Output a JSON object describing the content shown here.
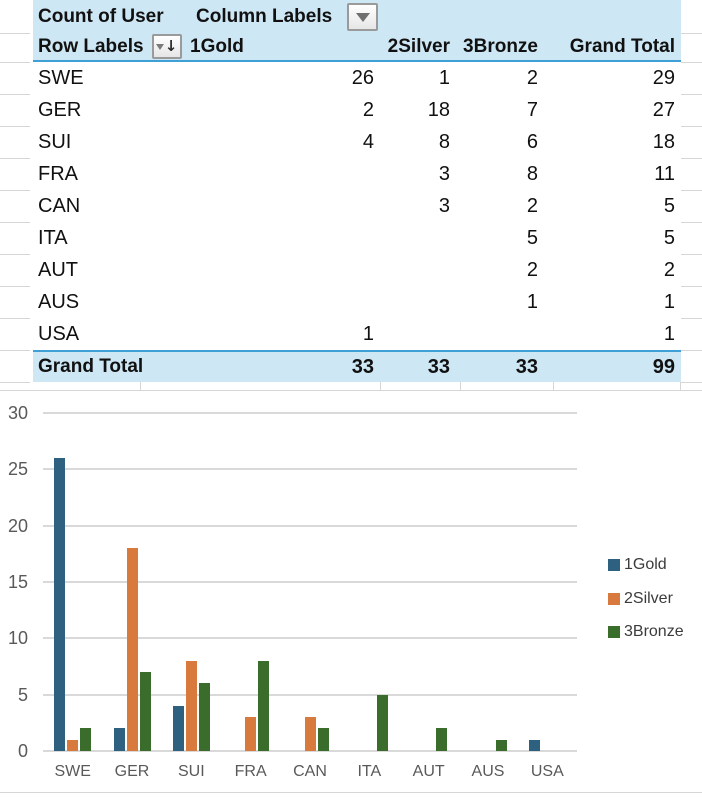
{
  "pivot_table": {
    "title": "Count of User",
    "column_labels_caption": "Column Labels",
    "row_labels_caption": "Row Labels",
    "columns": [
      "1Gold",
      "2Silver",
      "3Bronze",
      "Grand Total"
    ],
    "rows": [
      {
        "label": "SWE",
        "values": [
          "26",
          "1",
          "2",
          "29"
        ]
      },
      {
        "label": "GER",
        "values": [
          "2",
          "18",
          "7",
          "27"
        ]
      },
      {
        "label": "SUI",
        "values": [
          "4",
          "8",
          "6",
          "18"
        ]
      },
      {
        "label": "FRA",
        "values": [
          "",
          "3",
          "8",
          "11"
        ]
      },
      {
        "label": "CAN",
        "values": [
          "",
          "3",
          "2",
          "5"
        ]
      },
      {
        "label": "ITA",
        "values": [
          "",
          "",
          "5",
          "5"
        ]
      },
      {
        "label": "AUT",
        "values": [
          "",
          "",
          "2",
          "2"
        ]
      },
      {
        "label": "AUS",
        "values": [
          "",
          "",
          "1",
          "1"
        ]
      },
      {
        "label": "USA",
        "values": [
          "1",
          "",
          "",
          "1"
        ]
      }
    ],
    "grand_total": {
      "label": "Grand Total",
      "values": [
        "33",
        "33",
        "33",
        "99"
      ]
    }
  },
  "chart_data": {
    "type": "bar",
    "title": "",
    "xlabel": "",
    "ylabel": "",
    "categories": [
      "SWE",
      "GER",
      "SUI",
      "FRA",
      "CAN",
      "ITA",
      "AUT",
      "AUS",
      "USA"
    ],
    "series": [
      {
        "name": "1Gold",
        "color": "#2e6080",
        "values": [
          26,
          2,
          4,
          0,
          0,
          0,
          0,
          0,
          1
        ]
      },
      {
        "name": "2Silver",
        "color": "#d87a3e",
        "values": [
          1,
          18,
          8,
          3,
          3,
          0,
          0,
          0,
          0
        ]
      },
      {
        "name": "3Bronze",
        "color": "#3a6c2b",
        "values": [
          2,
          7,
          6,
          8,
          2,
          5,
          2,
          1,
          0
        ]
      }
    ],
    "ylim": [
      0,
      30
    ],
    "yticks": [
      0,
      5,
      10,
      15,
      20,
      25,
      30
    ],
    "grid": true,
    "legend_position": "right"
  },
  "colors": {
    "header_band": "#cee7f5",
    "pivot_rule_blue": "#3fa0d8",
    "gridline_grey": "#d9d9d9",
    "axis_text": "#595959",
    "gold_series": "#2e6080",
    "silver_series": "#d87a3e",
    "bronze_series": "#3a6c2b"
  }
}
